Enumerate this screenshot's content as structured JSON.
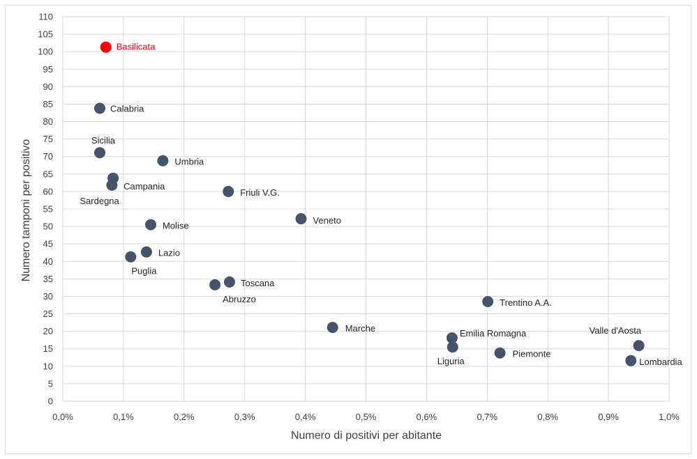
{
  "chart_data": {
    "type": "scatter",
    "xlabel": "Numero di positivi per abitante",
    "ylabel": "Numero tamponi per positivo",
    "xlim": [
      0,
      1.0
    ],
    "ylim": [
      0,
      110
    ],
    "x_ticks": [
      "0,0%",
      "0,1%",
      "0,2%",
      "0,3%",
      "0,4%",
      "0,5%",
      "0,6%",
      "0,7%",
      "0,8%",
      "0,9%",
      "1,0%"
    ],
    "y_ticks": [
      "0",
      "5",
      "10",
      "15",
      "20",
      "25",
      "30",
      "35",
      "40",
      "45",
      "50",
      "55",
      "60",
      "65",
      "70",
      "75",
      "80",
      "85",
      "90",
      "95",
      "100",
      "105",
      "110"
    ],
    "grid": true,
    "colors": {
      "default": "#44546a",
      "highlight": "#ff0000",
      "grid": "#d9d9d9"
    },
    "points": [
      {
        "label": "Basilicata",
        "x": 0.071,
        "y": 101.3,
        "highlight": true
      },
      {
        "label": "Calabria",
        "x": 0.061,
        "y": 83.8
      },
      {
        "label": "Sicilia",
        "x": 0.061,
        "y": 71.1
      },
      {
        "label": "Umbria",
        "x": 0.165,
        "y": 68.8
      },
      {
        "label": "Campania",
        "x": 0.083,
        "y": 63.8
      },
      {
        "label": "Sardegna",
        "x": 0.081,
        "y": 61.8
      },
      {
        "label": "Friuli V.G.",
        "x": 0.273,
        "y": 60.0
      },
      {
        "label": "Veneto",
        "x": 0.393,
        "y": 52.2
      },
      {
        "label": "Molise",
        "x": 0.145,
        "y": 50.5
      },
      {
        "label": "Lazio",
        "x": 0.138,
        "y": 42.7
      },
      {
        "label": "Puglia",
        "x": 0.112,
        "y": 41.3
      },
      {
        "label": "Toscana",
        "x": 0.275,
        "y": 34.1
      },
      {
        "label": "Abruzzo",
        "x": 0.251,
        "y": 33.3
      },
      {
        "label": "Trentino A.A.",
        "x": 0.701,
        "y": 28.5
      },
      {
        "label": "Marche",
        "x": 0.445,
        "y": 21.1
      },
      {
        "label": "Emilia Romagna",
        "x": 0.642,
        "y": 18.1
      },
      {
        "label": "Liguria",
        "x": 0.643,
        "y": 15.5
      },
      {
        "label": "Piemonte",
        "x": 0.721,
        "y": 13.8
      },
      {
        "label": "Valle d'Aosta",
        "x": 0.95,
        "y": 15.9
      },
      {
        "label": "Lombardia",
        "x": 0.937,
        "y": 11.6
      }
    ]
  }
}
